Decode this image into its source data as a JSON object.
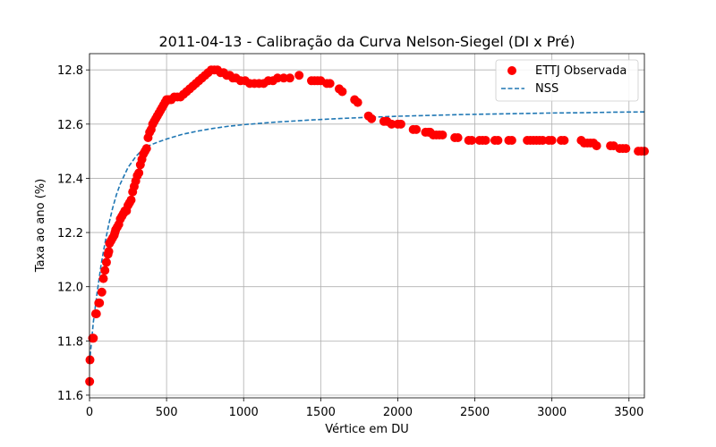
{
  "chart_data": {
    "type": "scatter",
    "title": "2011-04-13 - Calibração da Curva Nelson-Siegel (DI x Pré)",
    "xlabel": "Vértice em DU",
    "ylabel": "Taxa ao ano (%)",
    "xlim": [
      0,
      3600
    ],
    "ylim": [
      11.59,
      12.86
    ],
    "xticks": [
      0,
      500,
      1000,
      1500,
      2000,
      2500,
      3000,
      3500
    ],
    "yticks": [
      11.6,
      11.8,
      12.0,
      12.2,
      12.4,
      12.6,
      12.8
    ],
    "grid": true,
    "legend_position": "top-right",
    "colors": {
      "observed": "#ff0000",
      "fit": "#1f77b4"
    },
    "series": [
      {
        "name": "ETTJ Observada",
        "kind": "scatter",
        "x": [
          1,
          3,
          20,
          25,
          40,
          45,
          60,
          65,
          80,
          90,
          100,
          110,
          120,
          125,
          130,
          140,
          150,
          160,
          165,
          170,
          180,
          190,
          200,
          210,
          220,
          230,
          240,
          250,
          260,
          270,
          280,
          290,
          300,
          310,
          320,
          330,
          340,
          350,
          360,
          370,
          380,
          390,
          400,
          410,
          420,
          430,
          440,
          450,
          460,
          470,
          480,
          490,
          500,
          510,
          520,
          530,
          550,
          570,
          590,
          610,
          630,
          650,
          670,
          690,
          710,
          730,
          750,
          770,
          790,
          810,
          830,
          850,
          870,
          890,
          910,
          930,
          950,
          980,
          1010,
          1040,
          1070,
          1100,
          1130,
          1160,
          1190,
          1220,
          1260,
          1300,
          1360,
          1440,
          1460,
          1480,
          1500,
          1540,
          1560,
          1620,
          1640,
          1720,
          1740,
          1810,
          1830,
          1910,
          1930,
          1960,
          2000,
          2020,
          2100,
          2120,
          2180,
          2200,
          2210,
          2230,
          2250,
          2270,
          2290,
          2370,
          2390,
          2460,
          2480,
          2530,
          2550,
          2570,
          2630,
          2650,
          2720,
          2740,
          2840,
          2860,
          2880,
          2900,
          2920,
          2940,
          2980,
          3000,
          3060,
          3080,
          3190,
          3210,
          3230,
          3250,
          3270,
          3290,
          3380,
          3400,
          3440,
          3460,
          3480,
          3560,
          3580,
          3600
        ],
        "y": [
          11.65,
          11.73,
          11.81,
          11.81,
          11.9,
          11.9,
          11.94,
          11.94,
          11.98,
          12.03,
          12.06,
          12.09,
          12.12,
          12.13,
          12.16,
          12.17,
          12.18,
          12.19,
          12.2,
          12.21,
          12.22,
          12.23,
          12.25,
          12.26,
          12.27,
          12.28,
          12.28,
          12.3,
          12.31,
          12.32,
          12.35,
          12.37,
          12.39,
          12.41,
          12.42,
          12.45,
          12.47,
          12.49,
          12.5,
          12.51,
          12.55,
          12.57,
          12.58,
          12.6,
          12.61,
          12.62,
          12.63,
          12.64,
          12.65,
          12.66,
          12.67,
          12.68,
          12.69,
          12.69,
          12.69,
          12.69,
          12.7,
          12.7,
          12.7,
          12.71,
          12.72,
          12.73,
          12.74,
          12.75,
          12.76,
          12.77,
          12.78,
          12.79,
          12.8,
          12.8,
          12.8,
          12.79,
          12.79,
          12.78,
          12.78,
          12.77,
          12.77,
          12.76,
          12.76,
          12.75,
          12.75,
          12.75,
          12.75,
          12.76,
          12.76,
          12.77,
          12.77,
          12.77,
          12.78,
          12.76,
          12.76,
          12.76,
          12.76,
          12.75,
          12.75,
          12.73,
          12.72,
          12.69,
          12.68,
          12.63,
          12.62,
          12.61,
          12.61,
          12.6,
          12.6,
          12.6,
          12.58,
          12.58,
          12.57,
          12.57,
          12.57,
          12.56,
          12.56,
          12.56,
          12.56,
          12.55,
          12.55,
          12.54,
          12.54,
          12.54,
          12.54,
          12.54,
          12.54,
          12.54,
          12.54,
          12.54,
          12.54,
          12.54,
          12.54,
          12.54,
          12.54,
          12.54,
          12.54,
          12.54,
          12.54,
          12.54,
          12.54,
          12.53,
          12.53,
          12.53,
          12.53,
          12.52,
          12.52,
          12.52,
          12.51,
          12.51,
          12.51,
          12.5,
          12.5,
          12.5
        ]
      },
      {
        "name": "NSS",
        "kind": "line",
        "style": "dashed",
        "x": [
          0,
          25,
          50,
          75,
          100,
          125,
          150,
          175,
          200,
          250,
          300,
          350,
          400,
          450,
          500,
          600,
          700,
          800,
          900,
          1000,
          1200,
          1400,
          1600,
          1800,
          2000,
          2200,
          2400,
          2600,
          2800,
          3000,
          3200,
          3400,
          3600
        ],
        "y": [
          11.72,
          11.87,
          11.98,
          12.08,
          12.16,
          12.23,
          12.29,
          12.34,
          12.38,
          12.44,
          12.48,
          12.51,
          12.524,
          12.535,
          12.545,
          12.562,
          12.574,
          12.584,
          12.592,
          12.598,
          12.607,
          12.614,
          12.62,
          12.625,
          12.629,
          12.632,
          12.635,
          12.637,
          12.639,
          12.641,
          12.642,
          12.644,
          12.645
        ]
      }
    ]
  }
}
